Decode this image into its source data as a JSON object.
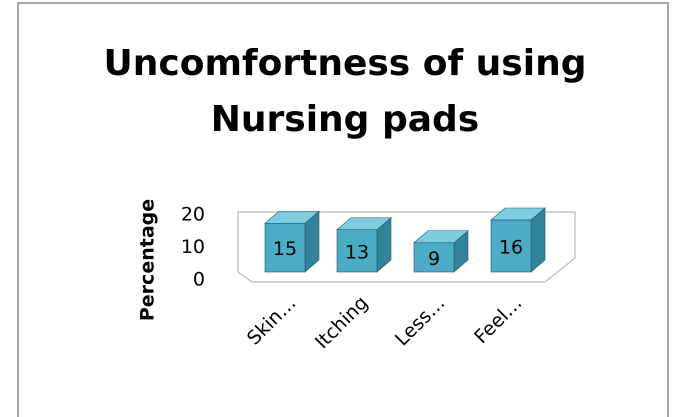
{
  "chart_data": {
    "type": "bar3d",
    "title": "Uncomfortness of using Nursing pads",
    "ylabel": "Percentage",
    "categories": [
      "Skin…",
      "Itching",
      "Less…",
      "Feel…"
    ],
    "values": [
      15,
      13,
      9,
      16
    ],
    "color": "#4bacc6",
    "ylim": [
      0,
      20
    ],
    "yticks": [
      0,
      10,
      20
    ]
  }
}
